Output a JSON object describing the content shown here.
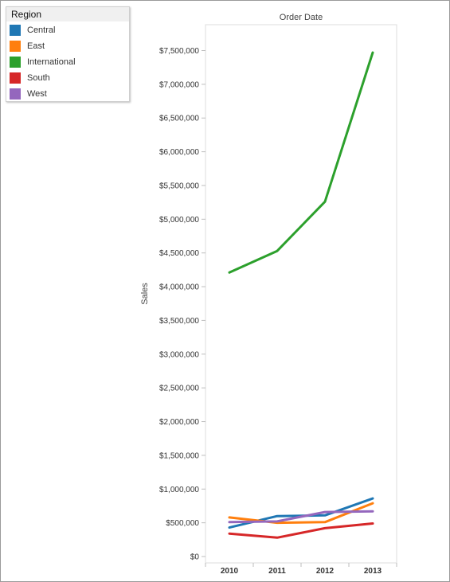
{
  "legend": {
    "title": "Region",
    "items": [
      {
        "label": "Central",
        "color": "#1f77b4"
      },
      {
        "label": "East",
        "color": "#ff7f0e"
      },
      {
        "label": "International",
        "color": "#2ca02c"
      },
      {
        "label": "South",
        "color": "#d62728"
      },
      {
        "label": "West",
        "color": "#9467bd"
      }
    ]
  },
  "chart_data": {
    "type": "line",
    "title": "Order Date",
    "xlabel": "",
    "ylabel": "Sales",
    "categories": [
      "2010",
      "2011",
      "2012",
      "2013"
    ],
    "ylim": [
      0,
      7800000
    ],
    "yticks": [
      0,
      500000,
      1000000,
      1500000,
      2000000,
      2500000,
      3000000,
      3500000,
      4000000,
      4500000,
      5000000,
      5500000,
      6000000,
      6500000,
      7000000,
      7500000
    ],
    "ytick_labels": [
      "$0",
      "$500,000",
      "$1,000,000",
      "$1,500,000",
      "$2,000,000",
      "$2,500,000",
      "$3,000,000",
      "$3,500,000",
      "$4,000,000",
      "$4,500,000",
      "$5,000,000",
      "$5,500,000",
      "$6,000,000",
      "$6,500,000",
      "$7,000,000",
      "$7,500,000"
    ],
    "grid": false,
    "legend_position": "top-left",
    "series": [
      {
        "name": "Central",
        "color": "#1f77b4",
        "values": [
          430000,
          600000,
          610000,
          860000
        ]
      },
      {
        "name": "East",
        "color": "#ff7f0e",
        "values": [
          580000,
          500000,
          510000,
          790000
        ]
      },
      {
        "name": "International",
        "color": "#2ca02c",
        "values": [
          4210000,
          4530000,
          5260000,
          7470000
        ]
      },
      {
        "name": "South",
        "color": "#d62728",
        "values": [
          340000,
          280000,
          420000,
          490000
        ]
      },
      {
        "name": "West",
        "color": "#9467bd",
        "values": [
          510000,
          520000,
          660000,
          670000
        ]
      }
    ]
  }
}
